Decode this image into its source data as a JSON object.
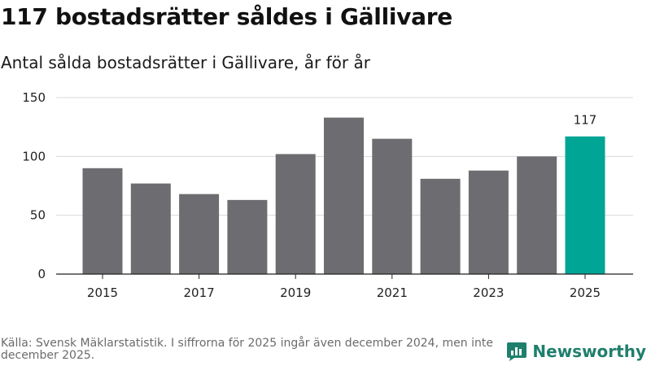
{
  "header": {
    "title": "117 bostadsrätter såldes i Gällivare",
    "subtitle": "Antal sålda bostadsrätter i Gällivare, år för år"
  },
  "footer": {
    "source": "Källa: Svensk Mäklarstatistik. I siffrorna för 2025 ingår även december 2024, men inte december 2025."
  },
  "brand": {
    "name": "Newsworthy"
  },
  "colors": {
    "bar": "#6d6c70",
    "highlight": "#00a596",
    "grid": "#d9d9d9",
    "axis": "#222222"
  },
  "chart_data": {
    "type": "bar",
    "title": "Antal sålda bostadsrätter i Gällivare, år för år",
    "xlabel": "",
    "ylabel": "",
    "categories": [
      "2015",
      "2016",
      "2017",
      "2018",
      "2019",
      "2020",
      "2021",
      "2022",
      "2023",
      "2024",
      "2025"
    ],
    "values": [
      90,
      77,
      68,
      63,
      102,
      133,
      115,
      81,
      88,
      100,
      117
    ],
    "x_tick_labels": [
      "2015",
      "2017",
      "2019",
      "2021",
      "2023",
      "2025"
    ],
    "y_ticks": [
      0,
      50,
      100,
      150
    ],
    "ylim": [
      0,
      150
    ],
    "highlight_index": 10,
    "data_labels": [
      {
        "index": 10,
        "text": "117"
      }
    ],
    "grid": true
  }
}
